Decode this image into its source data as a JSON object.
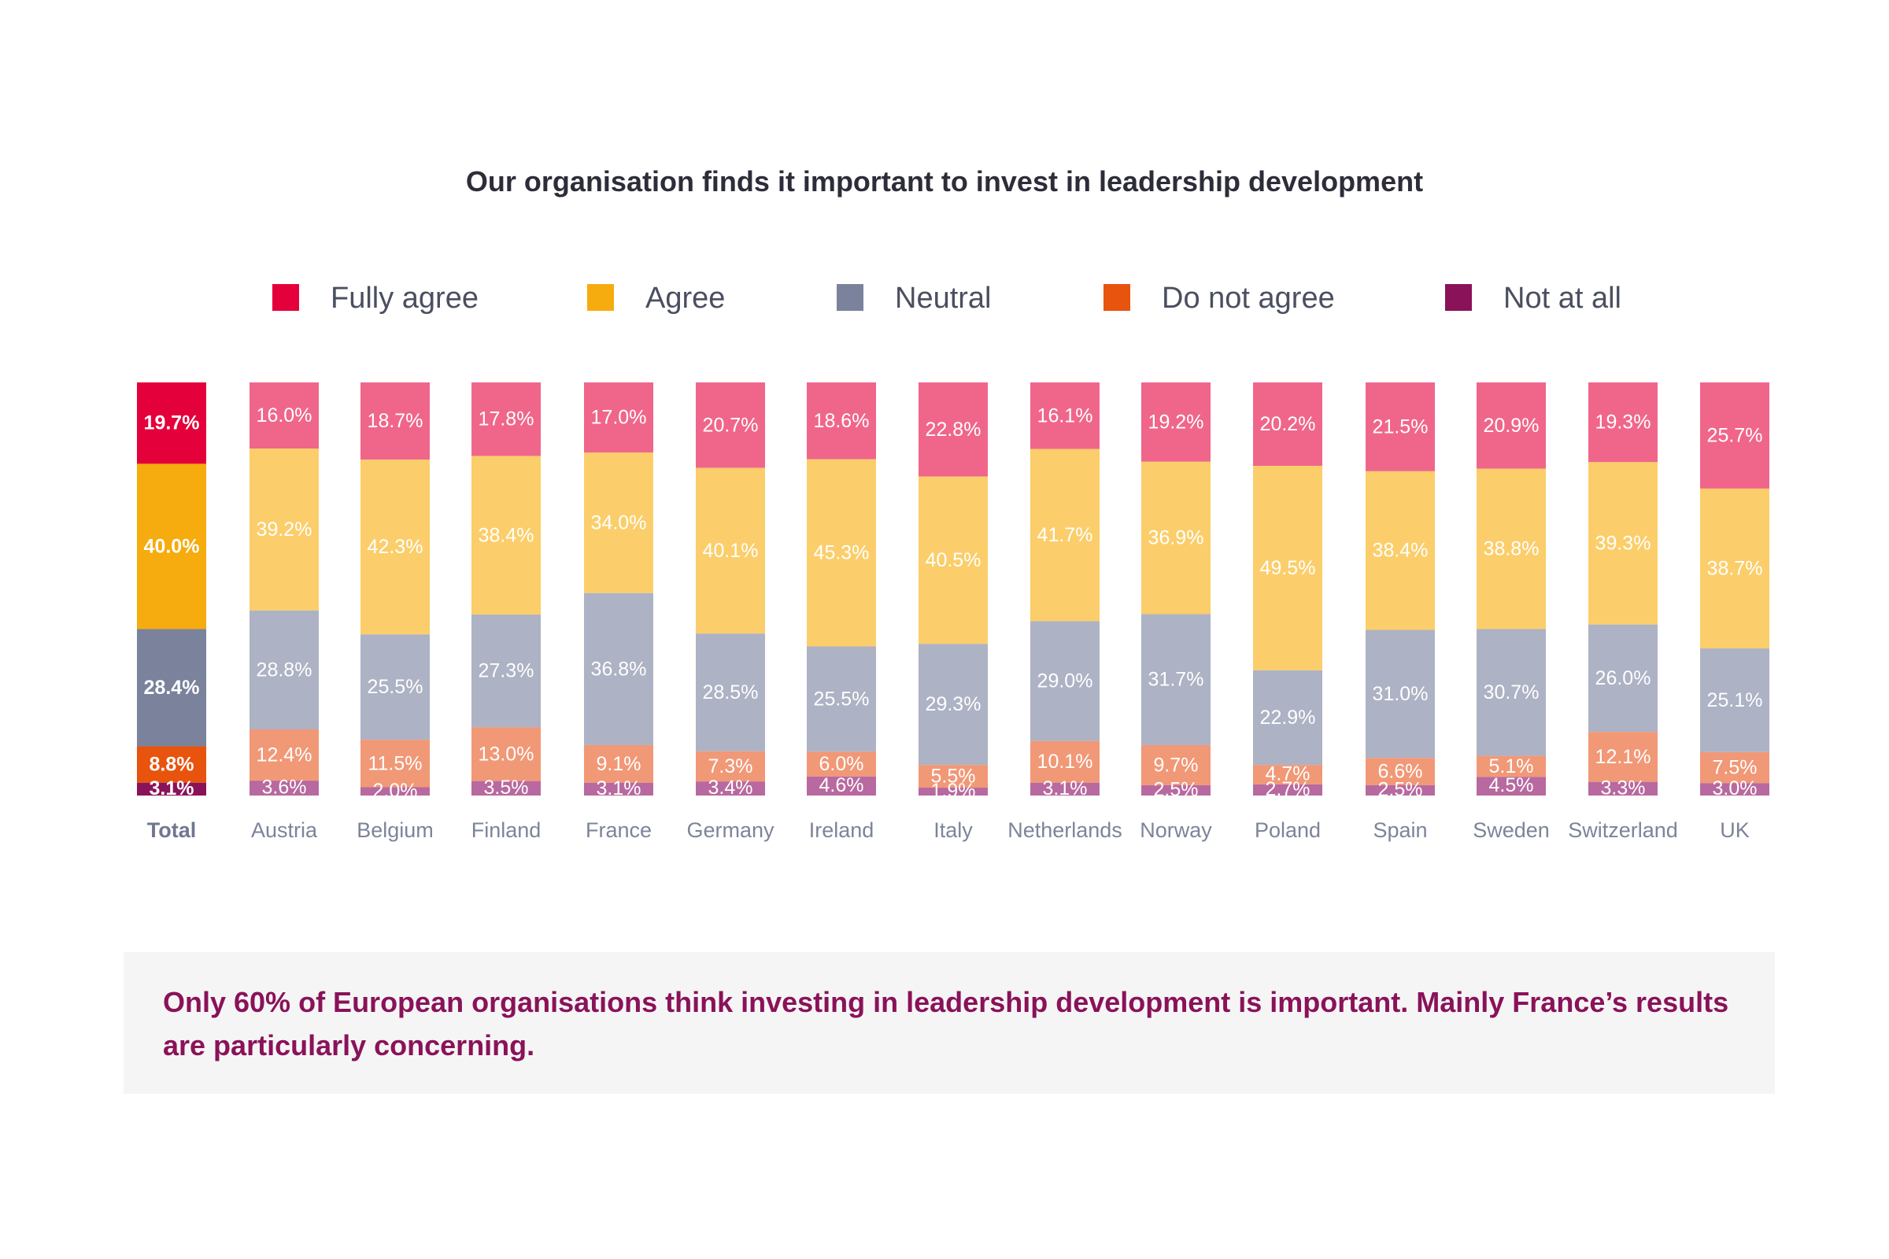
{
  "chart_data": {
    "type": "bar",
    "stacked": true,
    "title": "Our organisation finds it important to invest in leadership development",
    "categories": [
      "Total",
      "Austria",
      "Belgium",
      "Finland",
      "France",
      "Germany",
      "Ireland",
      "Italy",
      "Netherlands",
      "Norway",
      "Poland",
      "Spain",
      "Sweden",
      "Switzerland",
      "UK"
    ],
    "series": [
      {
        "name": "Fully agree",
        "values": [
          19.7,
          16.0,
          18.7,
          17.8,
          17.0,
          20.7,
          18.6,
          22.8,
          16.1,
          19.2,
          20.2,
          21.5,
          20.9,
          19.3,
          25.7
        ]
      },
      {
        "name": "Agree",
        "values": [
          40.0,
          39.2,
          42.3,
          38.4,
          34.0,
          40.1,
          45.3,
          40.5,
          41.7,
          36.9,
          49.5,
          38.4,
          38.8,
          39.3,
          38.7
        ]
      },
      {
        "name": "Neutral",
        "values": [
          28.4,
          28.8,
          25.5,
          27.3,
          36.8,
          28.5,
          25.5,
          29.3,
          29.0,
          31.7,
          22.9,
          31.0,
          30.7,
          26.0,
          25.1
        ]
      },
      {
        "name": "Do not agree",
        "values": [
          8.8,
          12.4,
          11.5,
          13.0,
          9.1,
          7.3,
          6.0,
          5.5,
          10.1,
          9.7,
          4.7,
          6.6,
          5.1,
          12.1,
          7.5
        ]
      },
      {
        "name": "Not at all",
        "values": [
          3.1,
          3.6,
          2.0,
          3.5,
          3.1,
          3.4,
          4.6,
          1.9,
          3.1,
          2.5,
          2.7,
          2.5,
          4.5,
          3.3,
          3.0
        ]
      }
    ],
    "legend_position": "top",
    "value_suffix": "%",
    "xlabel": "",
    "ylabel": "",
    "ylim": [
      0,
      100
    ],
    "grid": false
  },
  "colors": {
    "total": [
      "#e4003a",
      "#f6ab0e",
      "#7a829c",
      "#e8530e",
      "#8a1259"
    ],
    "country": [
      "#f0668a",
      "#fbce6b",
      "#adb2c4",
      "#f19877",
      "#b8699f"
    ],
    "legend": [
      "#e4003a",
      "#f6ab0e",
      "#7a829c",
      "#e8530e",
      "#8a1259"
    ]
  },
  "callout": {
    "text": "Only 60% of European organisations think investing in leadership development is important. Mainly France’s results are particularly concerning."
  }
}
